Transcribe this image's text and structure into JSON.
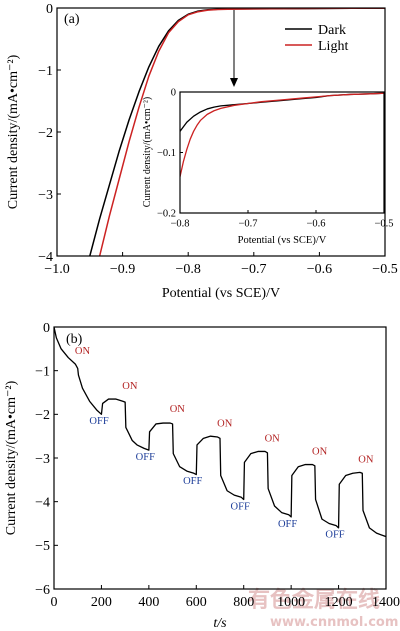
{
  "chart_data": [
    {
      "type": "line",
      "panel_label": "(a)",
      "xlabel": "Potential (vs SCE)/V",
      "ylabel": "Current density/(mA•cm⁻²)",
      "xlim": [
        -1.0,
        -0.5
      ],
      "ylim": [
        -4,
        0
      ],
      "xticks": [
        -1.0,
        -0.9,
        -0.8,
        -0.7,
        -0.6,
        -0.5
      ],
      "xtick_labels": [
        "−1.0",
        "−0.9",
        "−0.8",
        "−0.7",
        "−0.6",
        "−0.5"
      ],
      "yticks": [
        0,
        -1,
        -2,
        -3,
        -4
      ],
      "ytick_labels": [
        "0",
        "−1",
        "−2",
        "−3",
        "−4"
      ],
      "legend": {
        "position": "top-right",
        "entries": [
          "Dark",
          "Light"
        ]
      },
      "series": [
        {
          "name": "Dark",
          "color": "#000000",
          "x": [
            -0.95,
            -0.935,
            -0.92,
            -0.905,
            -0.89,
            -0.875,
            -0.86,
            -0.845,
            -0.83,
            -0.815,
            -0.8,
            -0.785,
            -0.77,
            -0.755,
            -0.74,
            -0.7,
            -0.65,
            -0.6,
            -0.55,
            -0.5
          ],
          "y": [
            -4.0,
            -3.4,
            -2.85,
            -2.3,
            -1.8,
            -1.35,
            -0.95,
            -0.62,
            -0.37,
            -0.2,
            -0.1,
            -0.05,
            -0.028,
            -0.02,
            -0.017,
            -0.015,
            -0.012,
            -0.008,
            -0.004,
            -0.002
          ]
        },
        {
          "name": "Light",
          "color": "#cc2222",
          "x": [
            -0.935,
            -0.92,
            -0.905,
            -0.89,
            -0.875,
            -0.86,
            -0.845,
            -0.83,
            -0.815,
            -0.8,
            -0.785,
            -0.77,
            -0.755,
            -0.74,
            -0.7,
            -0.65,
            -0.6,
            -0.55,
            -0.5
          ],
          "y": [
            -4.0,
            -3.35,
            -2.75,
            -2.15,
            -1.6,
            -1.1,
            -0.7,
            -0.4,
            -0.22,
            -0.11,
            -0.06,
            -0.035,
            -0.025,
            -0.02,
            -0.015,
            -0.011,
            -0.007,
            -0.004,
            -0.002
          ]
        }
      ],
      "inset": {
        "xlabel": "Potential (vs SCE)/V",
        "ylabel": "Current density/(mA•cm⁻²)",
        "xlim": [
          -0.8,
          -0.5
        ],
        "ylim": [
          -0.2,
          0
        ],
        "xticks": [
          -0.8,
          -0.7,
          -0.6,
          -0.5
        ],
        "xtick_labels": [
          "−0.8",
          "−0.7",
          "−0.6",
          "−0.5"
        ],
        "yticks": [
          0,
          -0.1,
          -0.2
        ],
        "ytick_labels": [
          "0",
          "−0.1",
          "−0.2"
        ],
        "series": [
          {
            "name": "Dark",
            "color": "#000000",
            "x": [
              -0.8,
              -0.79,
              -0.78,
              -0.77,
              -0.76,
              -0.75,
              -0.74,
              -0.72,
              -0.7,
              -0.68,
              -0.65,
              -0.62,
              -0.6,
              -0.58,
              -0.55,
              -0.52,
              -0.5
            ],
            "y": [
              -0.065,
              -0.05,
              -0.04,
              -0.033,
              -0.028,
              -0.025,
              -0.023,
              -0.021,
              -0.019,
              -0.017,
              -0.014,
              -0.011,
              -0.009,
              -0.006,
              -0.004,
              -0.003,
              -0.002
            ]
          },
          {
            "name": "Light",
            "color": "#cc2222",
            "x": [
              -0.8,
              -0.795,
              -0.79,
              -0.785,
              -0.78,
              -0.775,
              -0.77,
              -0.76,
              -0.75,
              -0.74,
              -0.72,
              -0.7,
              -0.68,
              -0.65,
              -0.62,
              -0.6,
              -0.58,
              -0.55,
              -0.52,
              -0.5
            ],
            "y": [
              -0.14,
              -0.115,
              -0.095,
              -0.078,
              -0.065,
              -0.055,
              -0.047,
              -0.037,
              -0.031,
              -0.027,
              -0.022,
              -0.019,
              -0.016,
              -0.013,
              -0.01,
              -0.008,
              -0.006,
              -0.004,
              -0.003,
              -0.002
            ]
          }
        ]
      }
    },
    {
      "type": "line",
      "panel_label": "(b)",
      "xlabel": "t/s",
      "ylabel": "Current density/(mA•cm⁻²)",
      "xlim": [
        0,
        1400
      ],
      "ylim": [
        -6,
        0
      ],
      "xticks": [
        0,
        200,
        400,
        600,
        800,
        1000,
        1200,
        1400
      ],
      "xtick_labels": [
        "0",
        "200",
        "400",
        "600",
        "800",
        "1000",
        "1200",
        "1400"
      ],
      "yticks": [
        0,
        -1,
        -2,
        -3,
        -4,
        -5,
        -6
      ],
      "ytick_labels": [
        "0",
        "−1",
        "−2",
        "−3",
        "−4",
        "−5",
        "−6"
      ],
      "series": [
        {
          "name": "",
          "color": "#000000",
          "x": [
            0,
            10,
            30,
            60,
            90,
            100,
            103,
            120,
            150,
            180,
            200,
            205,
            230,
            260,
            290,
            300,
            303,
            330,
            350,
            380,
            400,
            403,
            430,
            460,
            490,
            500,
            503,
            530,
            560,
            590,
            600,
            603,
            630,
            660,
            690,
            700,
            703,
            730,
            760,
            790,
            800,
            803,
            830,
            860,
            890,
            900,
            903,
            930,
            960,
            990,
            1000,
            1003,
            1030,
            1060,
            1090,
            1100,
            1103,
            1130,
            1160,
            1190,
            1200,
            1203,
            1230,
            1260,
            1290,
            1300,
            1303,
            1330,
            1360,
            1390,
            1400
          ],
          "y": [
            0,
            -0.25,
            -0.5,
            -0.7,
            -0.85,
            -0.95,
            -1.1,
            -1.4,
            -1.7,
            -1.9,
            -2.0,
            -1.75,
            -1.65,
            -1.65,
            -1.7,
            -1.72,
            -2.3,
            -2.6,
            -2.7,
            -2.78,
            -2.82,
            -2.4,
            -2.22,
            -2.2,
            -2.2,
            -2.22,
            -2.9,
            -3.2,
            -3.3,
            -3.35,
            -3.38,
            -2.7,
            -2.55,
            -2.5,
            -2.52,
            -2.55,
            -3.4,
            -3.75,
            -3.85,
            -3.9,
            -3.95,
            -3.1,
            -2.9,
            -2.85,
            -2.85,
            -2.88,
            -3.7,
            -4.1,
            -4.25,
            -4.3,
            -4.35,
            -3.4,
            -3.2,
            -3.15,
            -3.15,
            -3.18,
            -3.95,
            -4.4,
            -4.5,
            -4.55,
            -4.6,
            -3.6,
            -3.4,
            -3.35,
            -3.33,
            -3.35,
            -4.2,
            -4.6,
            -4.72,
            -4.78,
            -4.8
          ]
        }
      ],
      "annotations": [
        {
          "text": "ON",
          "t": 120,
          "j": -0.62,
          "color": "#b32424"
        },
        {
          "text": "OFF",
          "t": 190,
          "j": -2.22,
          "color": "#1f3f9a"
        },
        {
          "text": "ON",
          "t": 320,
          "j": -1.42,
          "color": "#b32424"
        },
        {
          "text": "OFF",
          "t": 385,
          "j": -3.05,
          "color": "#1f3f9a"
        },
        {
          "text": "ON",
          "t": 520,
          "j": -1.95,
          "color": "#b32424"
        },
        {
          "text": "OFF",
          "t": 585,
          "j": -3.6,
          "color": "#1f3f9a"
        },
        {
          "text": "ON",
          "t": 720,
          "j": -2.28,
          "color": "#b32424"
        },
        {
          "text": "OFF",
          "t": 785,
          "j": -4.18,
          "color": "#1f3f9a"
        },
        {
          "text": "ON",
          "t": 920,
          "j": -2.62,
          "color": "#b32424"
        },
        {
          "text": "OFF",
          "t": 985,
          "j": -4.58,
          "color": "#1f3f9a"
        },
        {
          "text": "ON",
          "t": 1120,
          "j": -2.92,
          "color": "#b32424"
        },
        {
          "text": "OFF",
          "t": 1185,
          "j": -4.82,
          "color": "#1f3f9a"
        },
        {
          "text": "ON",
          "t": 1315,
          "j": -3.1,
          "color": "#b32424"
        }
      ]
    }
  ],
  "watermark": {
    "cn": "有色金属在线",
    "url": "www.cnnmol.com"
  }
}
